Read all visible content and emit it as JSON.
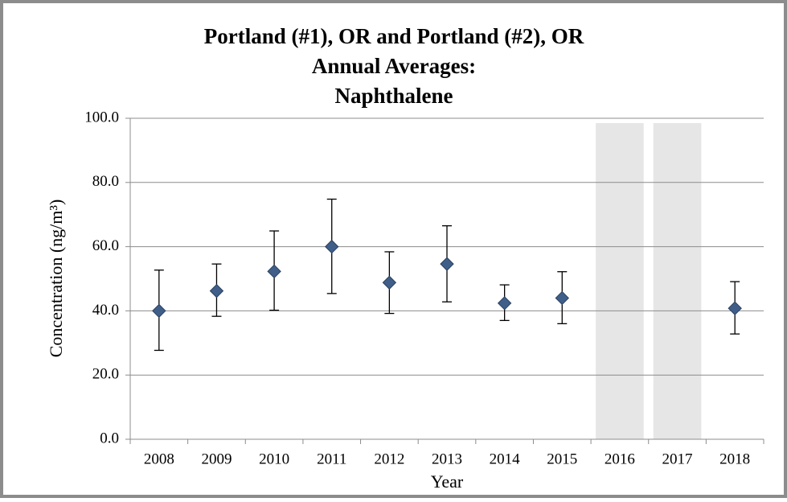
{
  "chart_data": {
    "type": "errorbar",
    "title": [
      "Portland (#1), OR and Portland (#2), OR",
      "Annual Averages:",
      "Naphthalene"
    ],
    "x_label": "Year",
    "y_label": "Concentration (ng/m³)",
    "categories": [
      "2008",
      "2009",
      "2010",
      "2011",
      "2012",
      "2013",
      "2014",
      "2015",
      "2016",
      "2017",
      "2018"
    ],
    "values": [
      40.0,
      46.2,
      52.3,
      60.0,
      48.8,
      54.6,
      42.4,
      44.0,
      null,
      null,
      40.8
    ],
    "lower": [
      27.7,
      38.3,
      40.2,
      45.4,
      39.2,
      42.8,
      37.0,
      36.0,
      null,
      null,
      32.8
    ],
    "upper": [
      52.7,
      54.6,
      64.9,
      74.8,
      58.4,
      66.5,
      48.1,
      52.2,
      null,
      null,
      49.1
    ],
    "color": "#3f5f8a",
    "ylim": [
      0,
      100
    ],
    "yticks": [
      {
        "value": 0,
        "label": "0.0"
      },
      {
        "value": 20,
        "label": "20.0"
      },
      {
        "value": 40,
        "label": "40.0"
      },
      {
        "value": 60,
        "label": "60.0"
      },
      {
        "value": 80,
        "label": "80.0"
      },
      {
        "value": 100,
        "label": "100.0"
      }
    ],
    "grid": true
  }
}
